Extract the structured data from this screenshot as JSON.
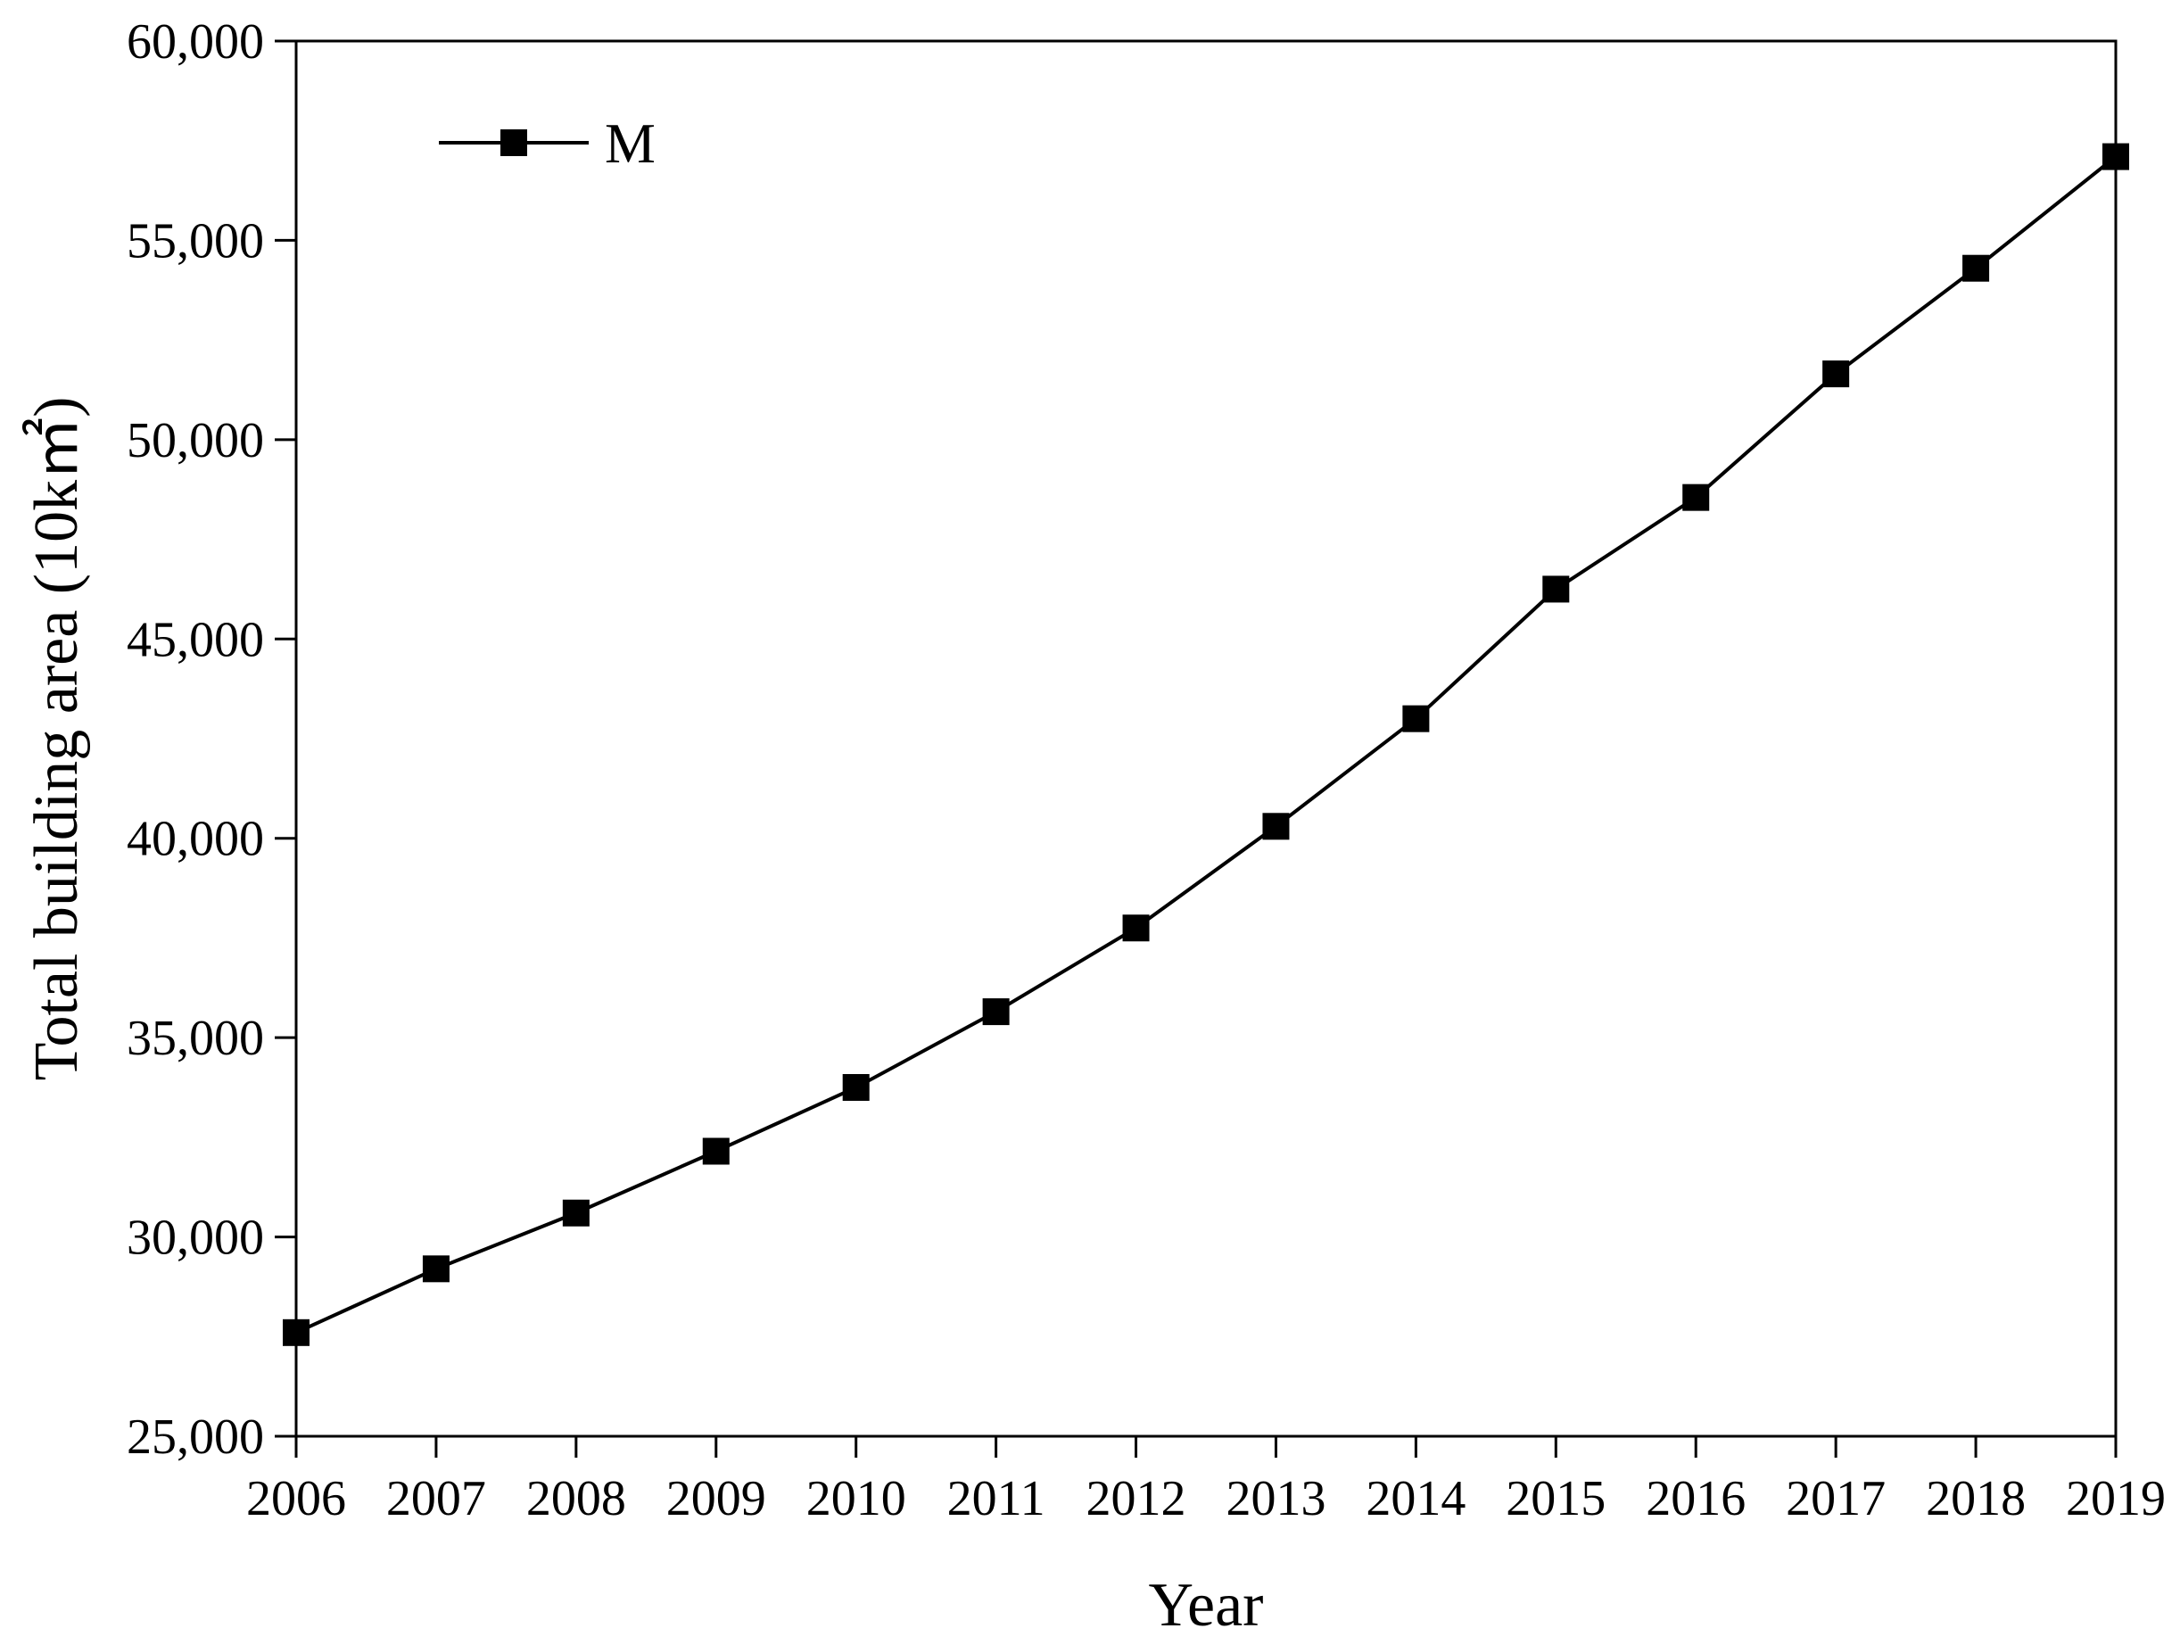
{
  "chart_data": {
    "type": "line",
    "xlabel": "Year",
    "ylabel": "Total building area (10k㎡)",
    "xlim": [
      2006,
      2019
    ],
    "ylim": [
      25000,
      60000
    ],
    "x_ticks": [
      "2006",
      "2007",
      "2008",
      "2009",
      "2010",
      "2011",
      "2012",
      "2013",
      "2014",
      "2015",
      "2016",
      "2017",
      "2018",
      "2019"
    ],
    "y_ticks": [
      "25,000",
      "30,000",
      "35,000",
      "40,000",
      "45,000",
      "50,000",
      "55,000",
      "60,000"
    ],
    "x": [
      2006,
      2007,
      2008,
      2009,
      2010,
      2011,
      2012,
      2013,
      2014,
      2015,
      2016,
      2017,
      2018,
      2019
    ],
    "series": [
      {
        "name": "M",
        "marker": "square",
        "color": "#000000",
        "values": [
          27600,
          29200,
          30600,
          32150,
          33750,
          35650,
          37750,
          40300,
          43000,
          46250,
          48550,
          51650,
          54300,
          57100
        ]
      }
    ],
    "legend_position": "top-left",
    "grid": false
  }
}
